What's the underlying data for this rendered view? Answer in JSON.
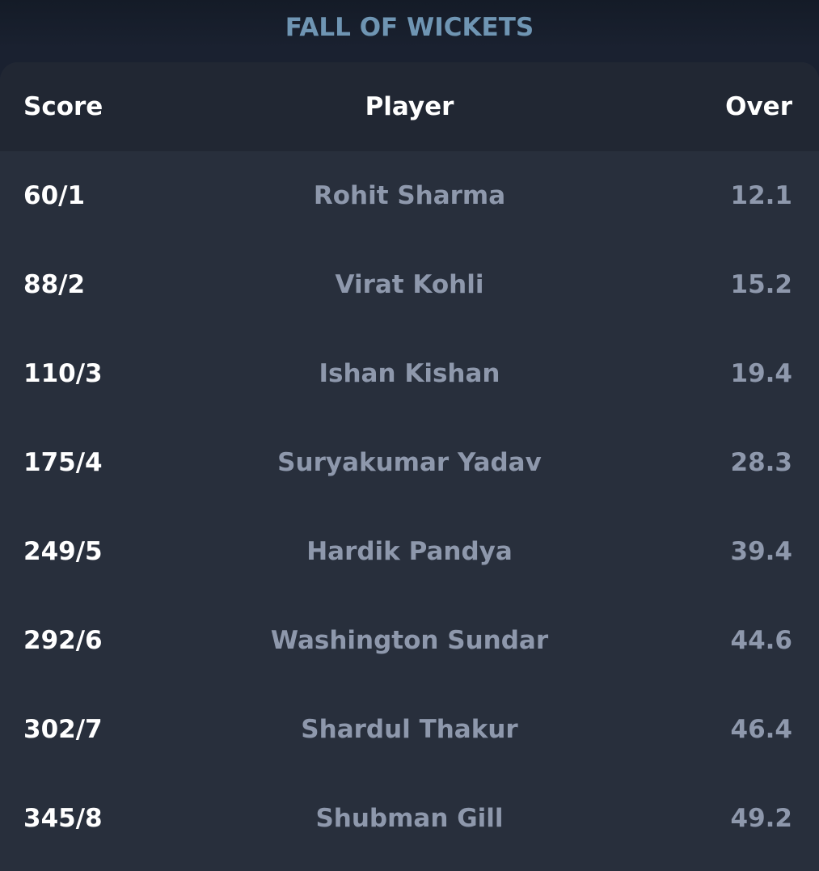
{
  "title": "FALL OF WICKETS",
  "headers": {
    "score": "Score",
    "player": "Player",
    "over": "Over"
  },
  "rows": [
    {
      "score": "60/1",
      "player": "Rohit Sharma",
      "over": "12.1"
    },
    {
      "score": "88/2",
      "player": "Virat Kohli",
      "over": "15.2"
    },
    {
      "score": "110/3",
      "player": "Ishan Kishan",
      "over": "19.4"
    },
    {
      "score": "175/4",
      "player": "Suryakumar Yadav",
      "over": "28.3"
    },
    {
      "score": "249/5",
      "player": "Hardik Pandya",
      "over": "39.4"
    },
    {
      "score": "292/6",
      "player": "Washington Sundar",
      "over": "44.6"
    },
    {
      "score": "302/7",
      "player": "Shardul Thakur",
      "over": "46.4"
    },
    {
      "score": "345/8",
      "player": "Shubman Gill",
      "over": "49.2"
    }
  ],
  "colors": {
    "title": "#6f95b3",
    "header_bg": "#212733",
    "panel_bg": "#282f3c",
    "page_bg": "#1a2130",
    "muted_text": "#8e98ac",
    "primary_text": "#ffffff"
  }
}
